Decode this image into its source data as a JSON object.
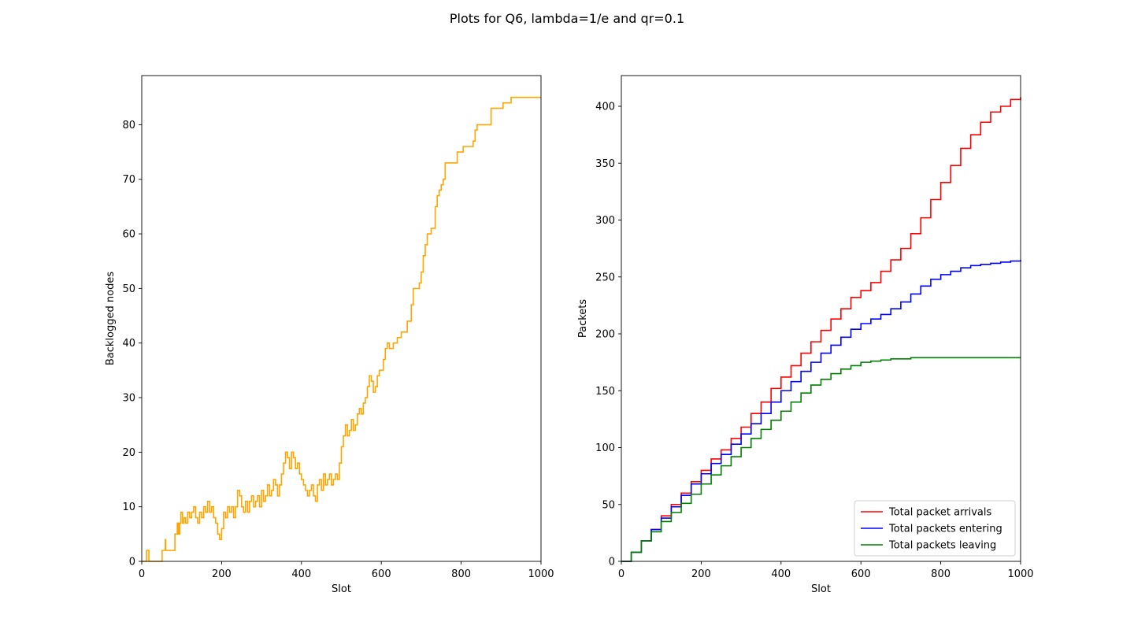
{
  "figure": {
    "suptitle": "Plots for Q6, lambda=1/e and qr=0.1"
  },
  "chart_data": [
    {
      "type": "line",
      "title": "",
      "xlabel": "Slot",
      "ylabel": "Backlogged nodes",
      "xlim": [
        0,
        1000
      ],
      "ylim": [
        0,
        89
      ],
      "xticks": [
        0,
        200,
        400,
        600,
        800,
        1000
      ],
      "yticks": [
        0,
        10,
        20,
        30,
        40,
        50,
        60,
        70,
        80
      ],
      "grid": false,
      "series": [
        {
          "color": "#ffa500",
          "step": true,
          "points": [
            [
              0,
              0
            ],
            [
              10,
              0
            ],
            [
              12,
              2
            ],
            [
              16,
              2
            ],
            [
              18,
              0
            ],
            [
              50,
              0
            ],
            [
              51,
              2
            ],
            [
              58,
              2
            ],
            [
              59,
              4
            ],
            [
              60,
              2
            ],
            [
              82,
              2
            ],
            [
              83,
              5
            ],
            [
              88,
              5
            ],
            [
              89,
              7
            ],
            [
              92,
              5
            ],
            [
              95,
              7
            ],
            [
              98,
              9
            ],
            [
              102,
              7
            ],
            [
              106,
              8
            ],
            [
              110,
              7
            ],
            [
              115,
              9
            ],
            [
              120,
              8
            ],
            [
              125,
              9
            ],
            [
              130,
              10
            ],
            [
              135,
              8
            ],
            [
              140,
              7
            ],
            [
              145,
              9
            ],
            [
              150,
              8
            ],
            [
              155,
              10
            ],
            [
              160,
              9
            ],
            [
              165,
              11
            ],
            [
              170,
              9
            ],
            [
              175,
              10
            ],
            [
              180,
              8
            ],
            [
              185,
              7
            ],
            [
              190,
              5
            ],
            [
              195,
              4
            ],
            [
              200,
              6
            ],
            [
              205,
              9
            ],
            [
              210,
              8
            ],
            [
              215,
              10
            ],
            [
              220,
              9
            ],
            [
              225,
              10
            ],
            [
              230,
              8
            ],
            [
              235,
              10
            ],
            [
              240,
              13
            ],
            [
              245,
              12
            ],
            [
              250,
              10
            ],
            [
              255,
              9
            ],
            [
              260,
              11
            ],
            [
              265,
              9
            ],
            [
              270,
              11
            ],
            [
              275,
              12
            ],
            [
              280,
              10
            ],
            [
              285,
              11
            ],
            [
              290,
              12
            ],
            [
              295,
              10
            ],
            [
              300,
              13
            ],
            [
              305,
              11
            ],
            [
              310,
              12
            ],
            [
              315,
              14
            ],
            [
              320,
              12
            ],
            [
              325,
              13
            ],
            [
              330,
              15
            ],
            [
              335,
              14
            ],
            [
              340,
              12
            ],
            [
              345,
              14
            ],
            [
              350,
              16
            ],
            [
              355,
              18
            ],
            [
              360,
              20
            ],
            [
              365,
              19
            ],
            [
              370,
              17
            ],
            [
              375,
              20
            ],
            [
              380,
              19
            ],
            [
              385,
              17
            ],
            [
              390,
              18
            ],
            [
              395,
              16
            ],
            [
              400,
              15
            ],
            [
              405,
              14
            ],
            [
              410,
              13
            ],
            [
              415,
              12
            ],
            [
              420,
              13
            ],
            [
              425,
              14
            ],
            [
              430,
              12
            ],
            [
              435,
              11
            ],
            [
              440,
              14
            ],
            [
              445,
              15
            ],
            [
              450,
              13
            ],
            [
              455,
              16
            ],
            [
              460,
              14
            ],
            [
              465,
              15
            ],
            [
              470,
              16
            ],
            [
              475,
              14
            ],
            [
              480,
              15
            ],
            [
              485,
              16
            ],
            [
              490,
              15
            ],
            [
              495,
              18
            ],
            [
              500,
              21
            ],
            [
              505,
              23
            ],
            [
              510,
              25
            ],
            [
              515,
              23
            ],
            [
              520,
              24
            ],
            [
              525,
              26
            ],
            [
              530,
              24
            ],
            [
              535,
              25
            ],
            [
              540,
              27
            ],
            [
              545,
              28
            ],
            [
              550,
              27
            ],
            [
              555,
              29
            ],
            [
              560,
              30
            ],
            [
              565,
              32
            ],
            [
              570,
              34
            ],
            [
              575,
              33
            ],
            [
              580,
              31
            ],
            [
              585,
              32
            ],
            [
              590,
              34
            ],
            [
              595,
              35
            ],
            [
              600,
              35
            ],
            [
              605,
              37
            ],
            [
              610,
              39
            ],
            [
              615,
              40
            ],
            [
              620,
              39
            ],
            [
              630,
              40
            ],
            [
              640,
              41
            ],
            [
              650,
              42
            ],
            [
              660,
              42
            ],
            [
              665,
              44
            ],
            [
              670,
              44
            ],
            [
              675,
              47
            ],
            [
              680,
              50
            ],
            [
              690,
              50
            ],
            [
              695,
              51
            ],
            [
              700,
              53
            ],
            [
              705,
              56
            ],
            [
              710,
              58
            ],
            [
              715,
              60
            ],
            [
              720,
              60
            ],
            [
              725,
              61
            ],
            [
              730,
              61
            ],
            [
              735,
              65
            ],
            [
              740,
              67
            ],
            [
              745,
              68
            ],
            [
              750,
              69
            ],
            [
              755,
              70
            ],
            [
              760,
              73
            ],
            [
              785,
              73
            ],
            [
              790,
              75
            ],
            [
              800,
              75
            ],
            [
              805,
              76
            ],
            [
              825,
              76
            ],
            [
              830,
              77
            ],
            [
              835,
              79
            ],
            [
              840,
              80
            ],
            [
              845,
              80
            ],
            [
              870,
              80
            ],
            [
              875,
              83
            ],
            [
              900,
              83
            ],
            [
              905,
              84
            ],
            [
              920,
              84
            ],
            [
              925,
              85
            ],
            [
              1000,
              85
            ]
          ]
        }
      ]
    },
    {
      "type": "line",
      "title": "",
      "xlabel": "Slot",
      "ylabel": "Packets",
      "xlim": [
        0,
        1000
      ],
      "ylim": [
        0,
        427
      ],
      "xticks": [
        0,
        200,
        400,
        600,
        800,
        1000
      ],
      "yticks": [
        0,
        50,
        100,
        150,
        200,
        250,
        300,
        350,
        400
      ],
      "grid": false,
      "legend": "lower-right",
      "series": [
        {
          "name": "Total packet arrivals",
          "color": "#ff0000",
          "step": true,
          "points": [
            [
              0,
              0
            ],
            [
              25,
              8
            ],
            [
              50,
              18
            ],
            [
              75,
              28
            ],
            [
              100,
              40
            ],
            [
              125,
              50
            ],
            [
              150,
              60
            ],
            [
              175,
              70
            ],
            [
              200,
              80
            ],
            [
              225,
              90
            ],
            [
              250,
              98
            ],
            [
              275,
              108
            ],
            [
              300,
              118
            ],
            [
              325,
              130
            ],
            [
              350,
              140
            ],
            [
              375,
              152
            ],
            [
              400,
              162
            ],
            [
              425,
              172
            ],
            [
              450,
              183
            ],
            [
              475,
              193
            ],
            [
              500,
              203
            ],
            [
              525,
              213
            ],
            [
              550,
              222
            ],
            [
              575,
              232
            ],
            [
              600,
              238
            ],
            [
              625,
              245
            ],
            [
              650,
              255
            ],
            [
              675,
              265
            ],
            [
              700,
              275
            ],
            [
              725,
              288
            ],
            [
              750,
              302
            ],
            [
              775,
              318
            ],
            [
              800,
              333
            ],
            [
              825,
              348
            ],
            [
              850,
              363
            ],
            [
              875,
              375
            ],
            [
              900,
              386
            ],
            [
              925,
              395
            ],
            [
              950,
              400
            ],
            [
              975,
              406
            ],
            [
              1000,
              408
            ]
          ]
        },
        {
          "name": "Total packets entering",
          "color": "#0000ff",
          "step": true,
          "points": [
            [
              0,
              0
            ],
            [
              25,
              8
            ],
            [
              50,
              18
            ],
            [
              75,
              28
            ],
            [
              100,
              38
            ],
            [
              125,
              48
            ],
            [
              150,
              58
            ],
            [
              175,
              68
            ],
            [
              200,
              77
            ],
            [
              225,
              86
            ],
            [
              250,
              94
            ],
            [
              275,
              103
            ],
            [
              300,
              112
            ],
            [
              325,
              121
            ],
            [
              350,
              130
            ],
            [
              375,
              140
            ],
            [
              400,
              150
            ],
            [
              425,
              158
            ],
            [
              450,
              167
            ],
            [
              475,
              175
            ],
            [
              500,
              183
            ],
            [
              525,
              190
            ],
            [
              550,
              197
            ],
            [
              575,
              204
            ],
            [
              600,
              209
            ],
            [
              625,
              213
            ],
            [
              650,
              217
            ],
            [
              675,
              222
            ],
            [
              700,
              228
            ],
            [
              725,
              235
            ],
            [
              750,
              242
            ],
            [
              775,
              248
            ],
            [
              800,
              252
            ],
            [
              825,
              255
            ],
            [
              850,
              258
            ],
            [
              875,
              260
            ],
            [
              900,
              261
            ],
            [
              925,
              262
            ],
            [
              950,
              263
            ],
            [
              975,
              264
            ],
            [
              1000,
              265
            ]
          ]
        },
        {
          "name": "Total packets leaving",
          "color": "#008000",
          "step": true,
          "points": [
            [
              0,
              0
            ],
            [
              25,
              8
            ],
            [
              50,
              18
            ],
            [
              75,
              26
            ],
            [
              100,
              35
            ],
            [
              125,
              43
            ],
            [
              150,
              51
            ],
            [
              175,
              59
            ],
            [
              200,
              68
            ],
            [
              225,
              76
            ],
            [
              250,
              84
            ],
            [
              275,
              92
            ],
            [
              300,
              100
            ],
            [
              325,
              108
            ],
            [
              350,
              116
            ],
            [
              375,
              124
            ],
            [
              400,
              132
            ],
            [
              425,
              140
            ],
            [
              450,
              148
            ],
            [
              475,
              155
            ],
            [
              500,
              160
            ],
            [
              525,
              165
            ],
            [
              550,
              169
            ],
            [
              575,
              172
            ],
            [
              600,
              175
            ],
            [
              625,
              176
            ],
            [
              650,
              177
            ],
            [
              675,
              178
            ],
            [
              700,
              178
            ],
            [
              725,
              179
            ],
            [
              750,
              179
            ],
            [
              800,
              179
            ],
            [
              850,
              179
            ],
            [
              900,
              179
            ],
            [
              950,
              179
            ],
            [
              1000,
              179
            ]
          ]
        }
      ]
    }
  ]
}
